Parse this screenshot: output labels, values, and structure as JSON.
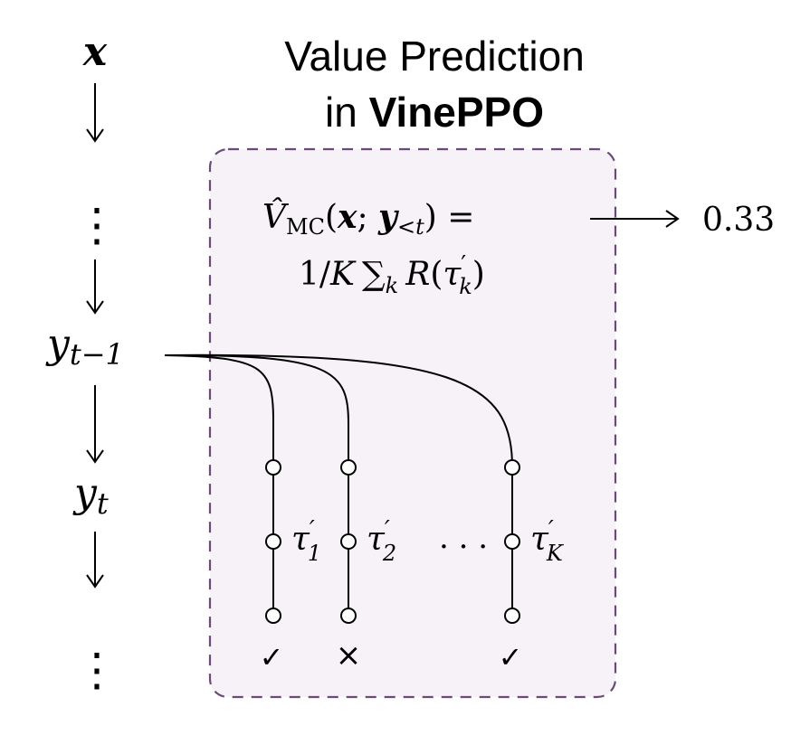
{
  "title": {
    "line1": "Value Prediction",
    "line2_prefix": "in ",
    "line2_bold": "VinePPO"
  },
  "sequence": {
    "x": "x",
    "dots": "⋮",
    "y_prev_base": "y",
    "y_prev_sub": "t−1",
    "y_t_base": "y",
    "y_t_sub": "t"
  },
  "formula": {
    "line1": {
      "v_hat": "V̂",
      "v_sub": "MC",
      "open": "(",
      "x": "x",
      "semi": "; ",
      "y": "y",
      "y_sub": "<t",
      "close": ") ="
    },
    "line2": {
      "one_over": "1/",
      "K": "K",
      "sum": "∑",
      "sum_sub": "k",
      "R": "R",
      "open": "(",
      "tau": "τ",
      "tau_sup": "′",
      "tau_sub": "k",
      "close": ")"
    }
  },
  "output_value": "0.33",
  "rollouts": [
    {
      "label_base": "τ",
      "label_sup": "′",
      "label_sub": "1",
      "outcome": "✓"
    },
    {
      "label_base": "τ",
      "label_sup": "′",
      "label_sub": "2",
      "outcome": "×"
    },
    {
      "label_base": "τ",
      "label_sup": "′",
      "label_sub": "K",
      "outcome": "✓"
    }
  ],
  "ellipsis": ". . .",
  "colors": {
    "box_border": "#6b4a78",
    "box_fill": "#f6f2f8",
    "line": "#000000"
  }
}
